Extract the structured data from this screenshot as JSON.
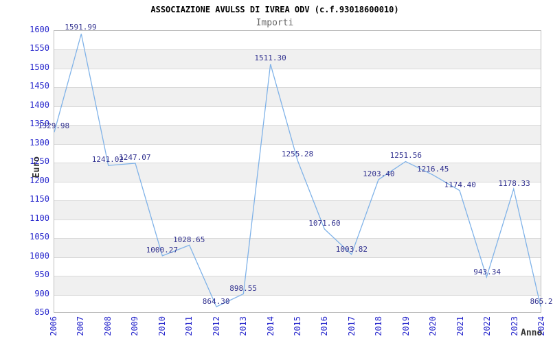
{
  "header": {
    "title": "ASSOCIAZIONE AVULSS DI IVREA ODV (c.f.93018600010)",
    "subtitle": "Importi"
  },
  "chart_data": {
    "type": "line",
    "title": "ASSOCIAZIONE AVULSS DI IVREA ODV (c.f.93018600010)",
    "subtitle": "Importi",
    "xlabel": "Anno",
    "ylabel": "Euro",
    "x": [
      2006,
      2007,
      2008,
      2009,
      2010,
      2011,
      2012,
      2013,
      2014,
      2015,
      2016,
      2017,
      2018,
      2019,
      2020,
      2021,
      2022,
      2023,
      2024
    ],
    "values": [
      1329.98,
      1591.99,
      1241.02,
      1247.07,
      1000.27,
      1028.65,
      864.3,
      898.55,
      1511.3,
      1255.28,
      1071.6,
      1003.82,
      1203.4,
      1251.56,
      1216.45,
      1174.4,
      943.34,
      1178.33,
      865.2
    ],
    "point_labels": [
      "1329.98",
      "1591.99",
      "1241.02",
      "1247.07",
      "1000.27",
      "1028.65",
      "864.30",
      "898.55",
      "1511.30",
      "1255.28",
      "1071.60",
      "1003.82",
      "1203.40",
      "1251.56",
      "1216.45",
      "1174.40",
      "943.34",
      "1178.33",
      "865.2"
    ],
    "ylim": [
      850,
      1600
    ],
    "ytick_step": 50,
    "yticks": [
      850,
      900,
      950,
      1000,
      1050,
      1100,
      1150,
      1200,
      1250,
      1300,
      1350,
      1400,
      1450,
      1500,
      1550,
      1600
    ],
    "grid": true,
    "legend": "none",
    "band_pattern": "alternating horizontal stripes, gray on odd bands from bottom",
    "colors": {
      "line": "#7fb2e8",
      "tick_label": "#2626cc",
      "data_label": "#31318f",
      "band": "#f0f0f0",
      "grid_line": "#d9d9d9",
      "plot_border": "#bdbdbd",
      "title": "#000000",
      "subtitle": "#666666",
      "axis_title": "#333333",
      "background": "#ffffff"
    }
  }
}
